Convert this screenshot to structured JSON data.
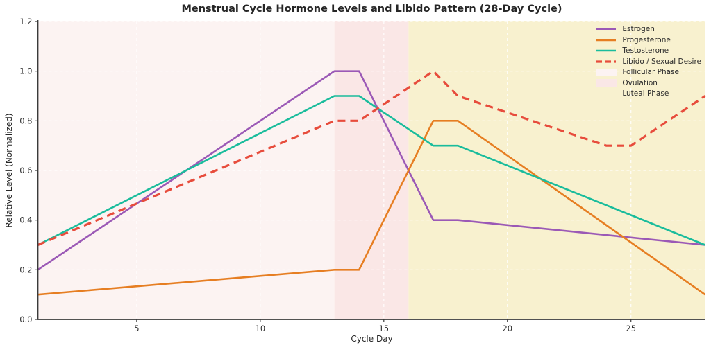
{
  "chart_data": {
    "type": "line",
    "title": "Menstrual Cycle Hormone Levels and Libido Pattern (28-Day Cycle)",
    "xlabel": "Cycle Day",
    "ylabel": "Relative Level (Normalized)",
    "xlim": [
      1,
      28
    ],
    "ylim": [
      0,
      1.2
    ],
    "xticks": [
      5,
      10,
      15,
      20,
      25
    ],
    "xtick_labels": [
      "5",
      "10",
      "15",
      "20",
      "25"
    ],
    "yticks": [
      0,
      0.2,
      0.4,
      0.6,
      0.8,
      1.0,
      1.2
    ],
    "ytick_labels": [
      "0.0",
      "0.2",
      "0.4",
      "0.6",
      "0.8",
      "1.0",
      "1.2"
    ],
    "grid": true,
    "grid_color": "#ffffff",
    "axis_color": "#3a3a3a",
    "legend_position": "upper-right",
    "phases": [
      {
        "name": "Follicular Phase",
        "from": 1,
        "to": 13,
        "color": "#fcf3f2"
      },
      {
        "name": "Ovulation",
        "from": 13,
        "to": 16,
        "color": "#fae7e6"
      },
      {
        "name": "Luteal Phase",
        "from": 16,
        "to": 28,
        "color": "#f8f1cf"
      }
    ],
    "series": [
      {
        "name": "Estrogen",
        "color": "#9b59b6",
        "style": "solid",
        "x": [
          1,
          13,
          14,
          17,
          18,
          28
        ],
        "y": [
          0.2,
          1.0,
          1.0,
          0.4,
          0.4,
          0.3
        ]
      },
      {
        "name": "Progesterone",
        "color": "#e67e22",
        "style": "solid",
        "x": [
          1,
          13,
          14,
          17,
          18,
          28
        ],
        "y": [
          0.1,
          0.2,
          0.2,
          0.8,
          0.8,
          0.1
        ]
      },
      {
        "name": "Testosterone",
        "color": "#1abc9c",
        "style": "solid",
        "x": [
          1,
          13,
          14,
          17,
          18,
          28
        ],
        "y": [
          0.3,
          0.9,
          0.9,
          0.7,
          0.7,
          0.3
        ]
      },
      {
        "name": "Libido / Sexual Desire",
        "color": "#e74c3c",
        "style": "dashed",
        "x": [
          1,
          13,
          14,
          17,
          18,
          24,
          25,
          28
        ],
        "y": [
          0.3,
          0.8,
          0.8,
          1.0,
          0.9,
          0.7,
          0.7,
          0.9
        ]
      }
    ]
  }
}
